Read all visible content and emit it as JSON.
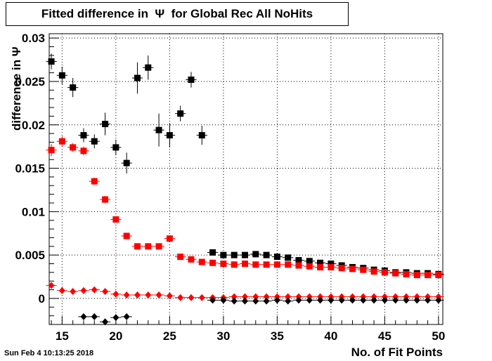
{
  "title": "Fitted difference in  Ψ  for Global Rec All NoHits",
  "timestamp": "Sun Feb  4 10:13:25 2018",
  "chart_data": {
    "type": "scatter",
    "title": "Fitted difference in  Ψ  for Global Rec All NoHits",
    "xlabel": "No. of Fit Points",
    "ylabel": "difference in  Ψ",
    "xlim": [
      13.8,
      50.4
    ],
    "ylim": [
      -0.003,
      0.0305
    ],
    "grid": true,
    "x_ticks": [
      15,
      20,
      25,
      30,
      35,
      40,
      45,
      50
    ],
    "y_ticks": [
      0,
      0.005,
      0.01,
      0.015,
      0.02,
      0.025,
      0.03
    ],
    "x_tick_labels": [
      "15",
      "20",
      "25",
      "30",
      "35",
      "40",
      "45",
      "50"
    ],
    "y_tick_labels": [
      "0",
      "0.005",
      "0.01",
      "0.015",
      "0.02",
      "0.025",
      "0.03"
    ],
    "series": [
      {
        "marker": "square",
        "color": "#000000",
        "x": [
          14,
          15,
          16,
          17,
          18,
          19,
          20,
          21,
          22,
          23,
          24,
          25,
          26,
          27,
          28,
          29,
          30,
          31,
          32,
          33,
          34,
          35,
          36,
          37,
          38,
          39,
          40,
          41,
          42,
          43,
          44,
          45,
          46,
          47,
          48,
          49,
          50
        ],
        "y": [
          0.0273,
          0.0257,
          0.0243,
          0.0188,
          0.0181,
          0.0201,
          0.0174,
          0.0156,
          0.0254,
          0.0266,
          0.0194,
          0.0188,
          0.0213,
          0.0252,
          0.0188,
          0.0053,
          0.005,
          0.005,
          0.005,
          0.0051,
          0.005,
          0.0048,
          0.0047,
          0.0044,
          0.0043,
          0.0041,
          0.004,
          0.0038,
          0.0036,
          0.0035,
          0.0033,
          0.0032,
          0.003,
          0.003,
          0.0029,
          0.0029,
          0.0028
        ],
        "yerr": [
          0.0009,
          0.001,
          0.0011,
          0.0008,
          0.0008,
          0.0013,
          0.0009,
          0.0012,
          0.0018,
          0.0014,
          0.0019,
          0.0014,
          0.0009,
          0.0009,
          0.0011,
          0.0002,
          0.0002,
          0.0002,
          0.0002,
          0.0002,
          0.0002,
          0.0002,
          0.0002,
          0.0002,
          0.0002,
          0.0002,
          0.0002,
          0.0002,
          0.0002,
          0.0002,
          0.0002,
          0.0002,
          0.0002,
          0.0002,
          0.0002,
          0.0002,
          0.0002
        ]
      },
      {
        "marker": "square",
        "color": "#ff0000",
        "x": [
          14,
          15,
          16,
          17,
          18,
          19,
          20,
          21,
          22,
          23,
          24,
          25,
          26,
          27,
          28,
          29,
          30,
          31,
          32,
          33,
          34,
          35,
          36,
          37,
          38,
          39,
          40,
          41,
          42,
          43,
          44,
          45,
          46,
          47,
          48,
          49,
          50
        ],
        "y": [
          0.0171,
          0.0181,
          0.0174,
          0.017,
          0.0135,
          0.0114,
          0.0091,
          0.0072,
          0.006,
          0.006,
          0.006,
          0.0069,
          0.0048,
          0.0045,
          0.0042,
          0.0041,
          0.004,
          0.0039,
          0.004,
          0.0039,
          0.0039,
          0.0039,
          0.0039,
          0.0038,
          0.0037,
          0.0036,
          0.0036,
          0.0035,
          0.0034,
          0.0033,
          0.0031,
          0.003,
          0.0029,
          0.0028,
          0.0027,
          0.0027,
          0.0027
        ],
        "yerr": [
          0.0007,
          0.0006,
          0.0005,
          0.0005,
          0.0004,
          0.0004,
          0.0003,
          0.0003,
          0.0002,
          0.0002,
          0.0002,
          0.0002,
          0.0002,
          0.0002,
          0.0002,
          0.0002,
          0.0002,
          0.0002,
          0.0002,
          0.0002,
          0.0002,
          0.0002,
          0.0002,
          0.0002,
          0.0002,
          0.0002,
          0.0002,
          0.0002,
          0.0002,
          0.0002,
          0.0002,
          0.0002,
          0.0002,
          0.0002,
          0.0002,
          0.0002,
          0.0002
        ]
      },
      {
        "marker": "diamond",
        "color": "#ff0000",
        "x": [
          14,
          15,
          16,
          17,
          18,
          19,
          20,
          21,
          22,
          23,
          24,
          25,
          26,
          27,
          28,
          29,
          30,
          31,
          32,
          33,
          34,
          35,
          36,
          37,
          38,
          39,
          40,
          41,
          42,
          43,
          44,
          45,
          46,
          47,
          48,
          49,
          50
        ],
        "y": [
          0.0015,
          0.0009,
          0.0008,
          0.0009,
          0.001,
          0.0008,
          0.0005,
          0.0004,
          0.0004,
          0.0004,
          0.0004,
          0.0003,
          0.0001,
          0.0001,
          0.0001,
          0.0001,
          0.0001,
          0.0002,
          0.0002,
          0.0002,
          0.0002,
          0.0002,
          0.0002,
          0.0002,
          0.0002,
          0.0002,
          0.0002,
          0.0002,
          0.0002,
          0.0002,
          0.0002,
          0.0002,
          0.0002,
          0.0002,
          0.0002,
          0.0002,
          0.0002
        ],
        "yerr": []
      },
      {
        "marker": "diamond",
        "color": "#000000",
        "x": [
          17,
          18,
          19,
          20,
          21,
          29,
          30,
          31,
          32,
          33,
          34,
          35,
          36,
          37,
          38,
          39,
          40,
          41,
          42,
          43,
          44,
          45,
          46,
          47,
          48,
          49,
          50
        ],
        "y": [
          -0.0021,
          -0.0021,
          -0.0027,
          -0.0022,
          -0.0021,
          -0.0002,
          -0.0002,
          -0.0003,
          -0.0003,
          -0.0003,
          -0.0003,
          -0.0002,
          -0.0003,
          -0.0002,
          -0.0002,
          -0.0002,
          -0.0002,
          -0.0002,
          -0.0002,
          -0.0002,
          -0.0002,
          -0.0002,
          -0.0002,
          -0.0002,
          -0.0002,
          -0.0002,
          -0.0002
        ],
        "yerr": []
      }
    ]
  }
}
